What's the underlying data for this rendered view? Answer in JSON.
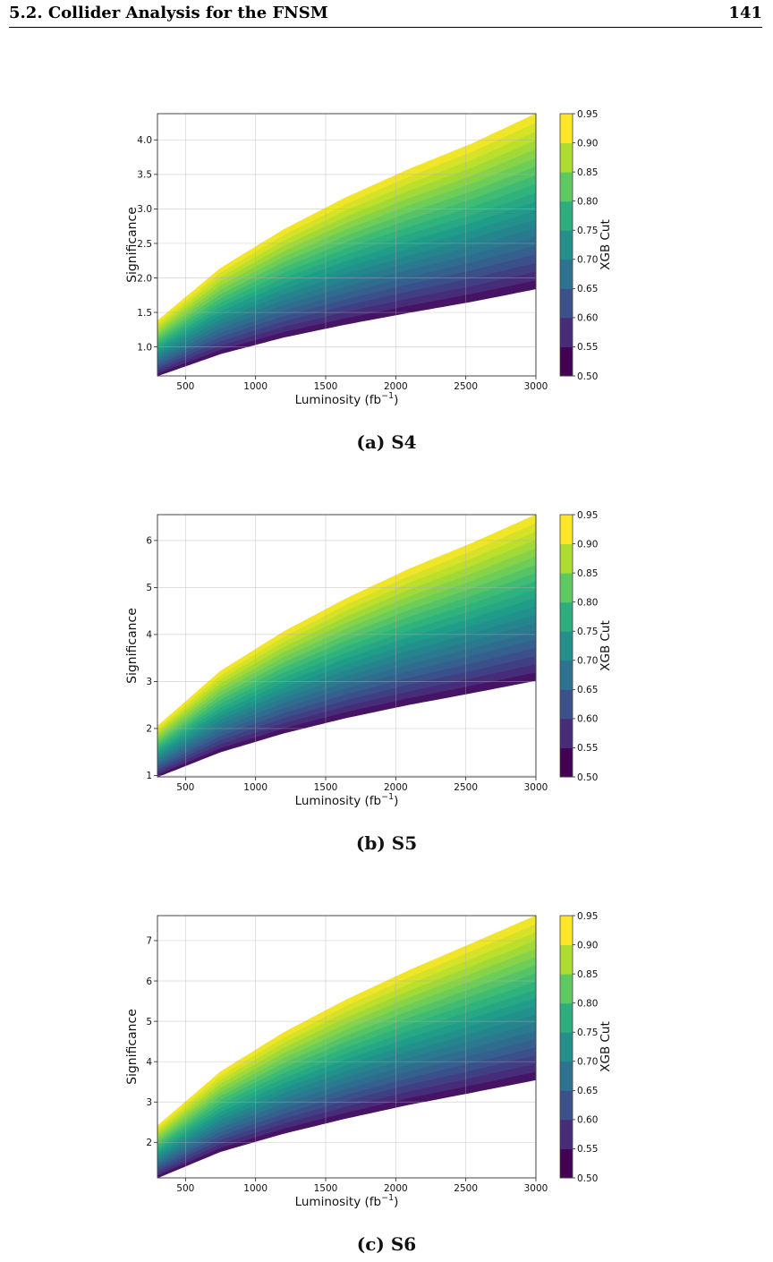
{
  "header": {
    "section": "5.2.   Collider Analysis for the FNSM",
    "page": "141"
  },
  "figures": [
    {
      "caption": "(a) S4",
      "chart_data": {
        "type": "area",
        "xlabel": "Luminosity (fb",
        "xlabel_exp": "−1",
        "xlabel_close": ")",
        "ylabel": "Significance",
        "xlim": [
          300,
          3000
        ],
        "ylim": [
          0.58,
          4.38
        ],
        "xticks": [
          500,
          1000,
          1500,
          2000,
          2500,
          3000
        ],
        "yticks": [
          1.0,
          1.5,
          2.0,
          2.5,
          3.0,
          3.5,
          4.0
        ],
        "ytick_labels": [
          "1.0",
          "1.5",
          "2.0",
          "2.5",
          "3.0",
          "3.5",
          "4.0"
        ],
        "colorbar": {
          "label": "XGB Cut",
          "range": [
            0.5,
            0.95
          ],
          "ticks": [
            "0.50",
            "0.55",
            "0.60",
            "0.65",
            "0.70",
            "0.75",
            "0.80",
            "0.85",
            "0.90",
            "0.95"
          ]
        },
        "x": [
          300,
          750,
          1200,
          1650,
          2100,
          2550,
          3000
        ],
        "series": [
          {
            "cut": 0.5,
            "values": [
              0.58,
              0.9,
              1.14,
              1.33,
              1.5,
              1.66,
              1.84
            ]
          },
          {
            "cut": 0.95,
            "values": [
              1.38,
              2.14,
              2.7,
              3.17,
              3.58,
              3.95,
              4.38
            ]
          }
        ]
      }
    },
    {
      "caption": "(b) S5",
      "chart_data": {
        "type": "area",
        "xlabel": "Luminosity (fb",
        "xlabel_exp": "−1",
        "xlabel_close": ")",
        "ylabel": "Significance",
        "xlim": [
          300,
          3000
        ],
        "ylim": [
          0.97,
          6.55
        ],
        "xticks": [
          500,
          1000,
          1500,
          2000,
          2500,
          3000
        ],
        "yticks": [
          1,
          2,
          3,
          4,
          5,
          6
        ],
        "ytick_labels": [
          "1",
          "2",
          "3",
          "4",
          "5",
          "6"
        ],
        "colorbar": {
          "label": "XGB Cut",
          "range": [
            0.5,
            0.95
          ],
          "ticks": [
            "0.50",
            "0.55",
            "0.60",
            "0.65",
            "0.70",
            "0.75",
            "0.80",
            "0.85",
            "0.90",
            "0.95"
          ]
        },
        "x": [
          300,
          750,
          1200,
          1650,
          2100,
          2550,
          3000
        ],
        "series": [
          {
            "cut": 0.5,
            "values": [
              0.97,
              1.5,
              1.9,
              2.23,
              2.51,
              2.76,
              3.02
            ]
          },
          {
            "cut": 0.95,
            "values": [
              2.05,
              3.22,
              4.06,
              4.77,
              5.4,
              5.95,
              6.55
            ]
          }
        ]
      }
    },
    {
      "caption": "(c) S6",
      "chart_data": {
        "type": "area",
        "xlabel": "Luminosity (fb",
        "xlabel_exp": "−1",
        "xlabel_close": ")",
        "ylabel": "Significance",
        "xlim": [
          300,
          3000
        ],
        "ylim": [
          1.12,
          7.62
        ],
        "xticks": [
          500,
          1000,
          1500,
          2000,
          2500,
          3000
        ],
        "yticks": [
          2,
          3,
          4,
          5,
          6,
          7
        ],
        "ytick_labels": [
          "2",
          "3",
          "4",
          "5",
          "6",
          "7"
        ],
        "colorbar": {
          "label": "XGB Cut",
          "range": [
            0.5,
            0.95
          ],
          "ticks": [
            "0.50",
            "0.55",
            "0.60",
            "0.65",
            "0.70",
            "0.75",
            "0.80",
            "0.85",
            "0.90",
            "0.95"
          ]
        },
        "x": [
          300,
          750,
          1200,
          1650,
          2100,
          2550,
          3000
        ],
        "series": [
          {
            "cut": 0.5,
            "values": [
              1.12,
              1.77,
              2.22,
              2.6,
              2.94,
              3.24,
              3.55
            ]
          },
          {
            "cut": 0.95,
            "values": [
              2.41,
              3.75,
              4.72,
              5.54,
              6.27,
              6.94,
              7.62
            ]
          }
        ]
      }
    }
  ]
}
